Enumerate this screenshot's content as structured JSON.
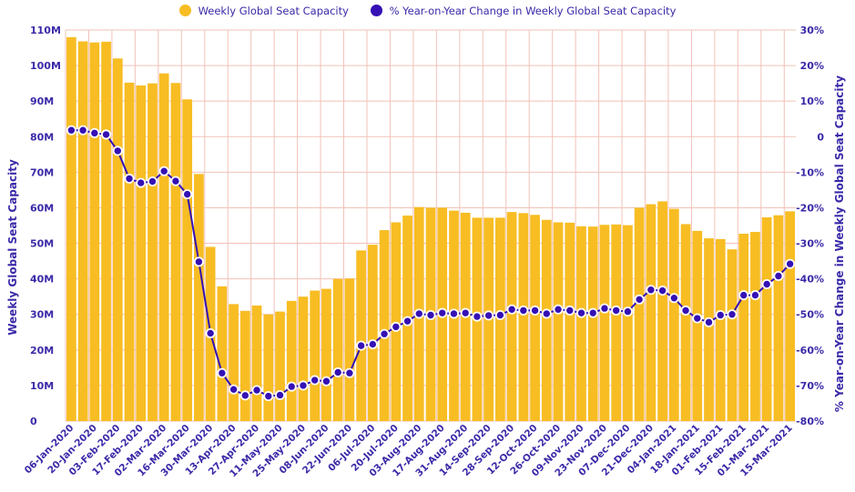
{
  "chart_data": {
    "type": "bar",
    "legend": {
      "position": "top-center",
      "entries": [
        {
          "label": "Weekly Global Seat Capacity",
          "color": "#f7bd23"
        },
        {
          "label": "% Year-on-Year Change in Weekly Global Seat Capacity",
          "color": "#3510b4"
        }
      ]
    },
    "ylabel": "Weekly Global Seat Capacity",
    "y2label": "% Year-on-Year Change in Weekly Global Seat Capacity",
    "ylim": [
      0,
      110000000
    ],
    "y2lim": [
      -80,
      30
    ],
    "yticks": [
      "0",
      "10M",
      "20M",
      "30M",
      "40M",
      "50M",
      "60M",
      "70M",
      "80M",
      "90M",
      "100M",
      "110M"
    ],
    "y2ticks": [
      "-80%",
      "-70%",
      "-60%",
      "-50%",
      "-40%",
      "-30%",
      "-20%",
      "-10%",
      "0",
      "10%",
      "20%",
      "30%"
    ],
    "xticks": [
      "06-Jan-2020",
      "20-Jan-2020",
      "03-Feb-2020",
      "17-Feb-2020",
      "02-Mar-2020",
      "16-Mar-2020",
      "30-Mar-2020",
      "13-Apr-2020",
      "27-Apr-2020",
      "11-May-2020",
      "25-May-2020",
      "08-Jun-2020",
      "22-Jun-2020",
      "06-Jul-2020",
      "20-Jul-2020",
      "03-Aug-2020",
      "17-Aug-2020",
      "31-Aug-2020",
      "14-Sep-2020",
      "28-Sep-2020",
      "12-Oct-2020",
      "26-Oct-2020",
      "09-Nov-2020",
      "23-Nov-2020",
      "07-Dec-2020",
      "21-Dec-2020",
      "04-Jan-2021",
      "18-Jan-2021",
      "01-Feb-2021",
      "15-Feb-2021",
      "01-Mar-2021",
      "15-Mar-2021"
    ],
    "grid": true,
    "series": [
      {
        "name": "Weekly Global Seat Capacity",
        "kind": "bar",
        "axis": "left",
        "color": "#f7bd23",
        "values": [
          108000000,
          106800000,
          106500000,
          106700000,
          102000000,
          95200000,
          94400000,
          95000000,
          97800000,
          95100000,
          90500000,
          69500000,
          49000000,
          37900000,
          32900000,
          31000000,
          32500000,
          30000000,
          30800000,
          33800000,
          35000000,
          36700000,
          37200000,
          40000000,
          40100000,
          48000000,
          49600000,
          53700000,
          55900000,
          57800000,
          60200000,
          60000000,
          60000000,
          59200000,
          58600000,
          57200000,
          57200000,
          57200000,
          58800000,
          58500000,
          58000000,
          56600000,
          55900000,
          55800000,
          54800000,
          54700000,
          55200000,
          55300000,
          55100000,
          60000000,
          61000000,
          61800000,
          59700000,
          55400000,
          53500000,
          51400000,
          51200000,
          48300000,
          52700000,
          53200000,
          57300000,
          57900000,
          59000000
        ]
      },
      {
        "name": "% Year-on-Year Change in Weekly Global Seat Capacity",
        "kind": "line",
        "axis": "right",
        "color": "#3510b4",
        "values": [
          1.8,
          1.8,
          1.0,
          0.6,
          -4.0,
          -11.8,
          -13.0,
          -12.6,
          -9.7,
          -12.5,
          -16.2,
          -35.2,
          -55.3,
          -66.5,
          -71.1,
          -72.8,
          -71.3,
          -73.0,
          -72.7,
          -70.3,
          -70.0,
          -68.5,
          -68.8,
          -66.3,
          -66.5,
          -58.8,
          -58.4,
          -55.5,
          -53.5,
          -51.9,
          -49.8,
          -50.2,
          -49.6,
          -49.8,
          -49.6,
          -50.6,
          -50.3,
          -50.2,
          -48.6,
          -48.9,
          -48.9,
          -49.8,
          -48.6,
          -48.9,
          -49.6,
          -49.6,
          -48.3,
          -48.9,
          -49.2,
          -45.8,
          -43.1,
          -43.3,
          -45.4,
          -48.9,
          -51.1,
          -52.2,
          -50.2,
          -50.0,
          -44.6,
          -44.6,
          -41.5,
          -39.2,
          -35.8
        ]
      }
    ]
  }
}
